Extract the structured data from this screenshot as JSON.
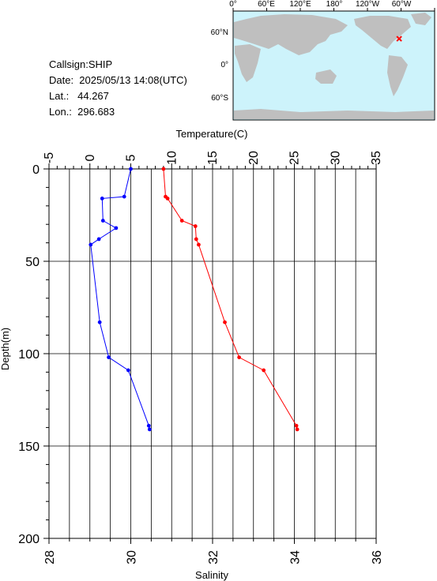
{
  "info": {
    "callsign": "Callsign:SHIP",
    "date": "Date:  2025/05/13 14:08(UTC)",
    "lat": "Lat.:   44.267",
    "lon": "Lon.:  296.683"
  },
  "map": {
    "top_labels": [
      "0°",
      "60°E",
      "120°E",
      "180°",
      "120°W",
      "60°W"
    ],
    "left_labels": [
      "60°N",
      "0°",
      "60°S"
    ],
    "ocean_color": "#cdf3fb",
    "land_color": "#bfbfbf",
    "marker_color": "#ff0000"
  },
  "chart_data": {
    "type": "line",
    "top_axis_label": "Temperature(C)",
    "bottom_axis_label": "Salinity",
    "y_axis_label": "Depth(m)",
    "temperature_range": [
      -5,
      35
    ],
    "temperature_ticks": [
      "-5",
      "0",
      "5",
      "10",
      "15",
      "20",
      "25",
      "30",
      "35"
    ],
    "salinity_range": [
      28,
      36
    ],
    "salinity_ticks": [
      "28",
      "30",
      "32",
      "34",
      "36"
    ],
    "depth_range": [
      0,
      200
    ],
    "depth_ticks": [
      "0",
      "50",
      "100",
      "150",
      "200"
    ],
    "grid": true,
    "series": [
      {
        "color": "#ff0000",
        "axis": "salinity",
        "points": [
          {
            "x": 30.8,
            "depth": 0
          },
          {
            "x": 30.85,
            "depth": 15
          },
          {
            "x": 30.9,
            "depth": 16
          },
          {
            "x": 31.25,
            "depth": 28
          },
          {
            "x": 31.58,
            "depth": 31
          },
          {
            "x": 31.6,
            "depth": 38
          },
          {
            "x": 31.66,
            "depth": 41
          },
          {
            "x": 32.3,
            "depth": 83
          },
          {
            "x": 32.65,
            "depth": 102
          },
          {
            "x": 33.25,
            "depth": 109
          },
          {
            "x": 34.05,
            "depth": 139
          },
          {
            "x": 34.07,
            "depth": 141
          }
        ]
      },
      {
        "color": "#0000ff",
        "axis": "temperature",
        "points": [
          {
            "x": 5.0,
            "depth": 0
          },
          {
            "x": 4.2,
            "depth": 15
          },
          {
            "x": 1.5,
            "depth": 16
          },
          {
            "x": 1.6,
            "depth": 28
          },
          {
            "x": 3.2,
            "depth": 32
          },
          {
            "x": 1.1,
            "depth": 38
          },
          {
            "x": 0.1,
            "depth": 41
          },
          {
            "x": 1.2,
            "depth": 83
          },
          {
            "x": 2.3,
            "depth": 102
          },
          {
            "x": 4.7,
            "depth": 109
          },
          {
            "x": 7.2,
            "depth": 139
          },
          {
            "x": 7.3,
            "depth": 141
          }
        ]
      }
    ]
  }
}
